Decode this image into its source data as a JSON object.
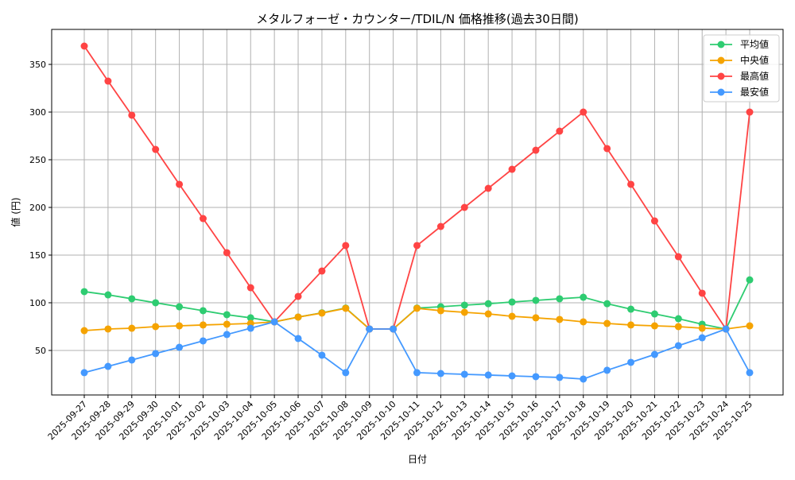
{
  "chart_data": {
    "type": "line",
    "title": "メタルフォーゼ・カウンター/TDIL/N 価格推移(過去30日間)",
    "xlabel": "日付",
    "ylabel": "値 (円)",
    "ylim": [
      3.3,
      386.7
    ],
    "yticks": [
      50,
      100,
      150,
      200,
      250,
      300,
      350
    ],
    "grid": true,
    "legend_position": "top-right",
    "x": [
      "2025-09-27",
      "2025-09-28",
      "2025-09-29",
      "2025-09-30",
      "2025-10-01",
      "2025-10-02",
      "2025-10-03",
      "2025-10-04",
      "2025-10-05",
      "2025-10-06",
      "2025-10-07",
      "2025-10-08",
      "2025-10-09",
      "2025-10-10",
      "2025-10-11",
      "2025-10-12",
      "2025-10-13",
      "2025-10-14",
      "2025-10-15",
      "2025-10-16",
      "2025-10-17",
      "2025-10-18",
      "2025-10-19",
      "2025-10-20",
      "2025-10-21",
      "2025-10-22",
      "2025-10-23",
      "2025-10-24",
      "2025-10-25"
    ],
    "series": [
      {
        "name": "平均値",
        "color": "#2ecc71",
        "values": [
          111.7,
          108.3,
          104.2,
          100,
          95.8,
          91.7,
          87.5,
          84.2,
          80,
          85,
          89.5,
          94.5,
          72.5,
          72.5,
          94.5,
          95.8,
          97.5,
          99,
          100.8,
          102.5,
          104.2,
          105.8,
          99,
          93.3,
          88.3,
          83.3,
          77.5,
          72.5,
          124
        ]
      },
      {
        "name": "中央値",
        "color": "#f5a300",
        "values": [
          70.8,
          72.5,
          73.3,
          75,
          75.8,
          76.7,
          77.5,
          78.3,
          80,
          85,
          89.2,
          94.2,
          72.5,
          72.5,
          94.2,
          91.7,
          90,
          88.3,
          85.8,
          84.2,
          82.5,
          80,
          78.3,
          76.7,
          75.8,
          75,
          73.3,
          72.5,
          75.8
        ]
      },
      {
        "name": "最高値",
        "color": "#ff4444",
        "values": [
          369.2,
          332.5,
          296.7,
          260.8,
          224.2,
          188.3,
          152.5,
          115.8,
          80,
          106.7,
          133.3,
          160,
          72.5,
          72.5,
          160,
          180,
          200,
          220,
          240,
          260,
          280,
          300,
          261.7,
          224.2,
          185.8,
          148.3,
          110,
          72.5,
          300
        ]
      },
      {
        "name": "最安値",
        "color": "#4499ff",
        "values": [
          26.7,
          33.3,
          40,
          46.7,
          53.3,
          60,
          66.7,
          73.3,
          80,
          62.5,
          45,
          26.7,
          72.5,
          72.5,
          26.7,
          25.8,
          25,
          24.2,
          23.3,
          22.5,
          21.7,
          20,
          29.2,
          37.5,
          45.8,
          55,
          63.3,
          72.5,
          26.7
        ]
      }
    ]
  }
}
